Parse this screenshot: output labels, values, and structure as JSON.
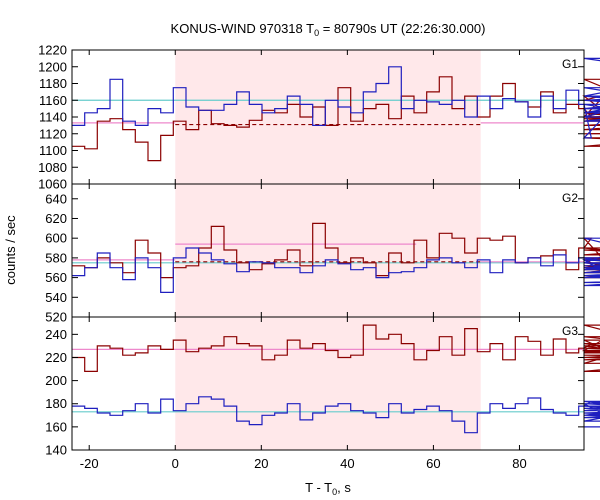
{
  "chart_data": {
    "type": "line",
    "title": "KONUS-WIND 970318 T₀ = 80790s UT (22:26:30.000)",
    "title_prefix": "KONUS-WIND 970318 T",
    "title_sub": "0",
    "title_suffix": " = 80790s UT (22:26:30.000)",
    "xlabel_prefix": "T - T",
    "xlabel_sub": "0",
    "xlabel_suffix": ", s",
    "ylabel": "counts / sec",
    "xlim": [
      -24,
      95
    ],
    "x_ticks": [
      -20,
      0,
      20,
      40,
      60,
      80
    ],
    "highlight_interval": [
      0,
      71
    ],
    "highlight_color": "#ffe8ea",
    "colors": {
      "dark_red": "#8b0000",
      "blue": "#1f1fbf",
      "cyan": "#66cccc",
      "pink": "#ee88cc"
    },
    "panels": [
      {
        "label": "G1",
        "ylim": [
          1060,
          1220
        ],
        "y_ticks": [
          1060,
          1080,
          1100,
          1120,
          1140,
          1160,
          1180,
          1200,
          1220
        ],
        "series": [
          {
            "color": "dark_red",
            "x_start": -24,
            "step": 2.944,
            "values": [
              1105,
              1102,
              1135,
              1138,
              1125,
              1110,
              1088,
              1118,
              1135,
              1125,
              1148,
              1132,
              1130,
              1128,
              1136,
              1148,
              1145,
              1155,
              1140,
              1152,
              1130,
              1175,
              1135,
              1150,
              1155,
              1138,
              1165,
              1145,
              1170,
              1188,
              1150,
              1165,
              1140,
              1165,
              1180,
              1158,
              1152,
              1170,
              1145,
              1155,
              1150,
              1140,
              1165,
              1135,
              1145,
              1140,
              1160,
              1185,
              1138,
              1135,
              1140,
              1140,
              1130,
              1140,
              1145,
              1120,
              1125,
              1145,
              1115,
              1105,
              1130
            ]
          },
          {
            "color": "blue",
            "x_start": -24,
            "step": 2.944,
            "values": [
              1130,
              1145,
              1150,
              1185,
              1135,
              1130,
              1150,
              1145,
              1175,
              1152,
              1148,
              1148,
              1155,
              1170,
              1155,
              1145,
              1150,
              1165,
              1155,
              1130,
              1160,
              1152,
              1145,
              1170,
              1180,
              1200,
              1150,
              1160,
              1158,
              1155,
              1160,
              1140,
              1165,
              1150,
              1162,
              1158,
              1140,
              1165,
              1150,
              1172,
              1155,
              1115,
              1140,
              1150,
              1155,
              1145,
              1160,
              1165,
              1160,
              1150,
              1165,
              1150,
              1160,
              1150,
              1145,
              1165,
              1210,
              1175,
              1135,
              1165,
              1150
            ]
          }
        ],
        "levels": [
          {
            "color": "cyan",
            "y": 1160,
            "x0": -24,
            "x1": 95,
            "dash": false
          },
          {
            "color": "pink",
            "y": 1133,
            "x0": -24,
            "x1": 0,
            "dash": false
          },
          {
            "color": "pink",
            "y": 1133,
            "x0": 71,
            "x1": 95,
            "dash": false
          },
          {
            "color": "dark_red",
            "y": 1131,
            "x0": 0,
            "x1": 71,
            "dash": true
          }
        ]
      },
      {
        "label": "G2",
        "ylim": [
          520,
          655
        ],
        "y_ticks": [
          520,
          540,
          560,
          580,
          600,
          620,
          640
        ],
        "series": [
          {
            "color": "dark_red",
            "x_start": -24,
            "step": 2.944,
            "values": [
              572,
              570,
              580,
              575,
              565,
              598,
              585,
              560,
              570,
              572,
              590,
              612,
              588,
              575,
              568,
              574,
              578,
              588,
              572,
              615,
              590,
              575,
              580,
              575,
              562,
              585,
              575,
              598,
              580,
              605,
              600,
              585,
              600,
              598,
              602,
              575,
              580,
              582,
              588,
              568,
              590,
              600,
              578,
              565,
              570,
              578,
              583,
              590,
              580,
              570,
              565,
              570,
              575,
              560,
              572,
              580,
              578,
              568,
              588,
              575,
              575
            ]
          },
          {
            "color": "blue",
            "x_start": -24,
            "step": 2.944,
            "values": [
              562,
              570,
              585,
              570,
              558,
              580,
              570,
              545,
              580,
              590,
              585,
              578,
              574,
              566,
              576,
              575,
              570,
              570,
              565,
              572,
              578,
              574,
              568,
              570,
              560,
              565,
              566,
              570,
              578,
              580,
              575,
              570,
              578,
              565,
              578,
              575,
              580,
              572,
              583,
              575,
              580,
              578,
              565,
              568,
              578,
              575,
              600,
              580,
              562,
              552,
              560,
              570,
              575,
              560,
              572,
              575,
              568,
              570,
              555,
              562,
              575
            ]
          }
        ],
        "levels": [
          {
            "color": "cyan",
            "y": 575,
            "x0": -24,
            "x1": 95,
            "dash": false
          },
          {
            "color": "pink",
            "y": 578,
            "x0": -24,
            "x1": 0,
            "dash": false
          },
          {
            "color": "pink",
            "y": 594,
            "x0": 0,
            "x1": 56,
            "dash": false
          },
          {
            "color": "pink",
            "y": 576,
            "x0": 71,
            "x1": 95,
            "dash": false
          },
          {
            "color": "dark_red",
            "y": 576,
            "x0": 0,
            "x1": 71,
            "dash": true
          }
        ]
      },
      {
        "label": "G3",
        "ylim": [
          140,
          255
        ],
        "y_ticks": [
          140,
          160,
          180,
          200,
          220,
          240
        ],
        "series": [
          {
            "color": "dark_red",
            "x_start": -24,
            "step": 2.944,
            "values": [
              220,
              208,
              230,
              228,
              222,
              224,
              230,
              227,
              235,
              225,
              228,
              230,
              238,
              232,
              230,
              218,
              222,
              235,
              228,
              232,
              226,
              220,
              222,
              248,
              236,
              240,
              232,
              218,
              226,
              238,
              222,
              245,
              225,
              232,
              218,
              238,
              234,
              222,
              236,
              224,
              228,
              232,
              230,
              226,
              248,
              235,
              208,
              215,
              238,
              228,
              224,
              226,
              228,
              225,
              226,
              218,
              228,
              226,
              222,
              220,
              232
            ]
          },
          {
            "color": "blue",
            "x_start": -24,
            "step": 2.944,
            "values": [
              178,
              176,
              172,
              170,
              174,
              180,
              172,
              184,
              174,
              180,
              186,
              184,
              178,
              165,
              162,
              170,
              172,
              180,
              166,
              172,
              178,
              180,
              174,
              172,
              168,
              180,
              172,
              175,
              178,
              174,
              165,
              155,
              172,
              180,
              176,
              180,
              185,
              175,
              172,
              170,
              178,
              182,
              180,
              165,
              172,
              170,
              178,
              174,
              182,
              178,
              176,
              172,
              170,
              176,
              180,
              172,
              178,
              170,
              168,
              182,
              160
            ]
          }
        ],
        "levels": [
          {
            "color": "cyan",
            "y": 173,
            "x0": -24,
            "x1": 95,
            "dash": false
          },
          {
            "color": "pink",
            "y": 227,
            "x0": -24,
            "x1": 95,
            "dash": false
          }
        ]
      }
    ]
  }
}
